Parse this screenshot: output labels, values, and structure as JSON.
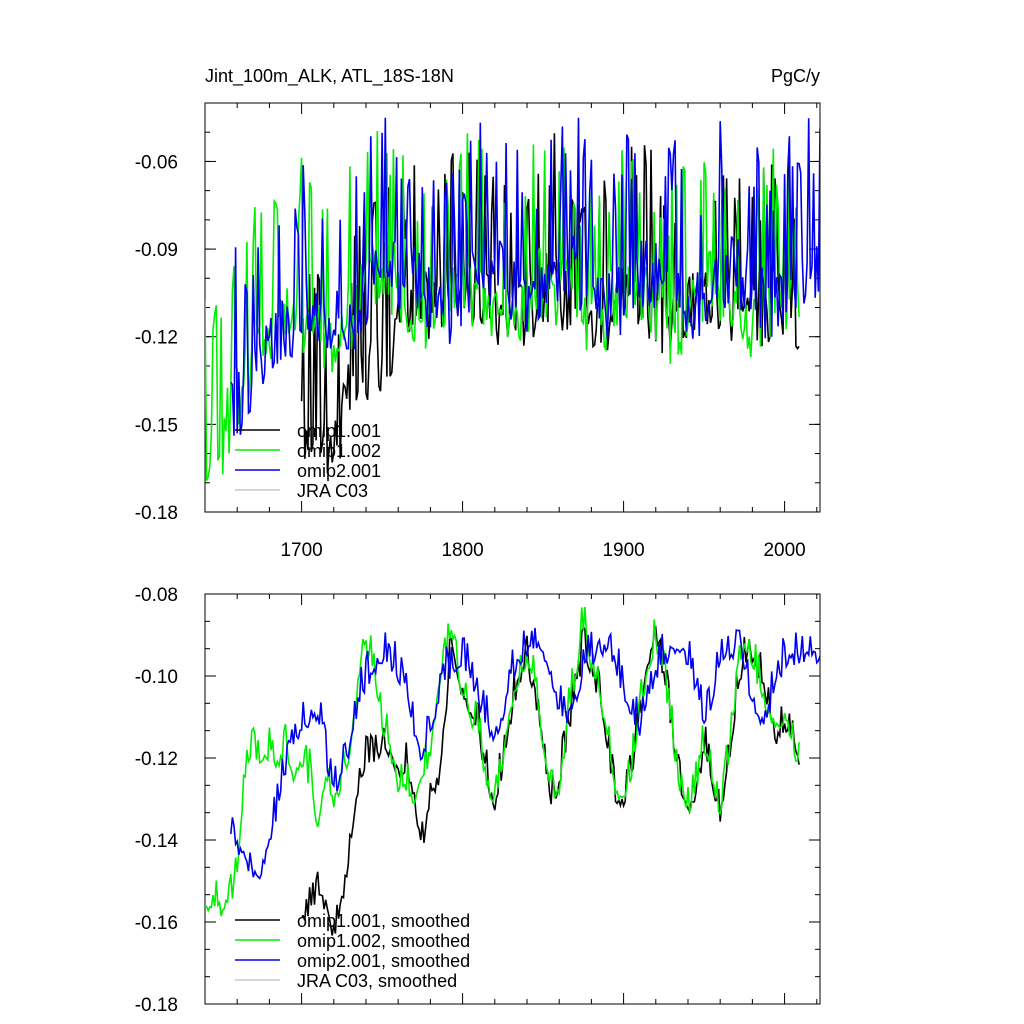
{
  "chart_data": [
    {
      "type": "line",
      "title": "Jint_100m_ALK, ATL_18S-18N",
      "units_label": "PgC/y",
      "xlabel": "",
      "ylabel": "",
      "xlim": [
        1640,
        2022
      ],
      "ylim": [
        -0.18,
        -0.04
      ],
      "xticks": [
        1700,
        1800,
        1900,
        2000
      ],
      "xtick_labels": [
        "1700",
        "1800",
        "1900",
        "2000"
      ],
      "yticks": [
        -0.18,
        -0.15,
        -0.12,
        -0.09,
        -0.06
      ],
      "ytick_labels": [
        "-0.18",
        "-0.15",
        "-0.12",
        "-0.09",
        "-0.06"
      ],
      "legend_position": "bottom-left",
      "series": [
        {
          "name": "omip1.001",
          "color": "#000000",
          "x_start": 1700,
          "x_end": 2009,
          "x": [
            1700,
            1710,
            1720,
            1730,
            1740,
            1750,
            1760,
            1770,
            1780,
            1790,
            1800,
            1810,
            1820,
            1830,
            1840,
            1850,
            1860,
            1870,
            1880,
            1890,
            1900,
            1910,
            1920,
            1930,
            1940,
            1950,
            1960,
            1970,
            1980,
            1990,
            2000,
            2009
          ],
          "values": [
            -0.153,
            -0.15,
            -0.158,
            -0.14,
            -0.132,
            -0.125,
            -0.118,
            -0.112,
            -0.108,
            -0.105,
            -0.102,
            -0.106,
            -0.112,
            -0.115,
            -0.11,
            -0.103,
            -0.104,
            -0.11,
            -0.116,
            -0.112,
            -0.102,
            -0.104,
            -0.112,
            -0.118,
            -0.112,
            -0.104,
            -0.106,
            -0.113,
            -0.116,
            -0.11,
            -0.108,
            -0.112
          ]
        },
        {
          "name": "omip1.002",
          "color": "#00ee00",
          "x_start": 1640,
          "x_end": 2009,
          "x": [
            1640,
            1650,
            1660,
            1670,
            1680,
            1690,
            1700,
            1710,
            1720,
            1730,
            1740,
            1750,
            1760,
            1770,
            1780,
            1790,
            1800,
            1810,
            1820,
            1830,
            1840,
            1850,
            1860,
            1870,
            1880,
            1890,
            1900,
            1910,
            1920,
            1930,
            1940,
            1950,
            1960,
            1970,
            1980,
            1990,
            2000,
            2009
          ],
          "values": [
            -0.158,
            -0.156,
            -0.14,
            -0.125,
            -0.118,
            -0.115,
            -0.112,
            -0.118,
            -0.122,
            -0.115,
            -0.1,
            -0.098,
            -0.103,
            -0.11,
            -0.113,
            -0.108,
            -0.101,
            -0.106,
            -0.112,
            -0.114,
            -0.108,
            -0.1,
            -0.104,
            -0.11,
            -0.115,
            -0.111,
            -0.102,
            -0.104,
            -0.111,
            -0.117,
            -0.112,
            -0.103,
            -0.105,
            -0.112,
            -0.116,
            -0.109,
            -0.108,
            -0.112
          ]
        },
        {
          "name": "omip2.001",
          "color": "#0000ee",
          "x_start": 1656,
          "x_end": 2022,
          "x": [
            1656,
            1660,
            1670,
            1680,
            1690,
            1700,
            1710,
            1720,
            1730,
            1740,
            1750,
            1760,
            1770,
            1780,
            1790,
            1800,
            1810,
            1820,
            1830,
            1840,
            1850,
            1860,
            1870,
            1880,
            1890,
            1900,
            1910,
            1920,
            1930,
            1940,
            1950,
            1960,
            1970,
            1980,
            1990,
            2000,
            2010,
            2022
          ],
          "values": [
            -0.142,
            -0.143,
            -0.136,
            -0.125,
            -0.118,
            -0.113,
            -0.11,
            -0.112,
            -0.116,
            -0.104,
            -0.1,
            -0.098,
            -0.102,
            -0.106,
            -0.112,
            -0.108,
            -0.1,
            -0.098,
            -0.104,
            -0.11,
            -0.108,
            -0.1,
            -0.098,
            -0.104,
            -0.11,
            -0.106,
            -0.099,
            -0.097,
            -0.104,
            -0.11,
            -0.107,
            -0.099,
            -0.097,
            -0.103,
            -0.109,
            -0.104,
            -0.099,
            -0.1
          ]
        },
        {
          "name": "JRA C03",
          "color": "#c8c8c8",
          "x": [],
          "values": []
        }
      ]
    },
    {
      "type": "line",
      "title": "",
      "xlabel": "",
      "ylabel": "",
      "xlim": [
        1640,
        2022
      ],
      "ylim": [
        -0.18,
        -0.08
      ],
      "xticks": [
        1700,
        1800,
        1900,
        2000
      ],
      "xtick_labels": [],
      "yticks": [
        -0.18,
        -0.16,
        -0.14,
        -0.12,
        -0.1,
        -0.08
      ],
      "ytick_labels": [
        "-0.18",
        "-0.16",
        "-0.14",
        "-0.12",
        "-0.10",
        "-0.08"
      ],
      "legend_position": "bottom-left",
      "series": [
        {
          "name": "omip1.001, smoothed",
          "color": "#000000",
          "x": [
            1700,
            1705,
            1710,
            1715,
            1720,
            1725,
            1730,
            1735,
            1740,
            1745,
            1750,
            1755,
            1760,
            1765,
            1770,
            1775,
            1780,
            1785,
            1790,
            1793,
            1795,
            1800,
            1805,
            1810,
            1815,
            1820,
            1825,
            1830,
            1835,
            1840,
            1845,
            1850,
            1855,
            1860,
            1865,
            1870,
            1875,
            1880,
            1885,
            1890,
            1895,
            1900,
            1905,
            1910,
            1915,
            1920,
            1925,
            1930,
            1935,
            1940,
            1945,
            1950,
            1955,
            1960,
            1965,
            1970,
            1975,
            1980,
            1985,
            1990,
            1995,
            2000,
            2005,
            2009
          ],
          "values": [
            -0.16,
            -0.158,
            -0.154,
            -0.156,
            -0.165,
            -0.155,
            -0.143,
            -0.128,
            -0.122,
            -0.12,
            -0.117,
            -0.119,
            -0.124,
            -0.122,
            -0.13,
            -0.142,
            -0.13,
            -0.125,
            -0.108,
            -0.092,
            -0.097,
            -0.104,
            -0.11,
            -0.114,
            -0.125,
            -0.132,
            -0.122,
            -0.11,
            -0.101,
            -0.097,
            -0.104,
            -0.118,
            -0.13,
            -0.127,
            -0.115,
            -0.104,
            -0.095,
            -0.098,
            -0.106,
            -0.118,
            -0.13,
            -0.131,
            -0.124,
            -0.11,
            -0.098,
            -0.089,
            -0.1,
            -0.113,
            -0.126,
            -0.134,
            -0.128,
            -0.118,
            -0.126,
            -0.134,
            -0.122,
            -0.106,
            -0.095,
            -0.095,
            -0.1,
            -0.108,
            -0.115,
            -0.112,
            -0.116,
            -0.122
          ]
        },
        {
          "name": "omip1.002, smoothed",
          "color": "#00ee00",
          "x": [
            1640,
            1645,
            1650,
            1655,
            1660,
            1662,
            1665,
            1670,
            1675,
            1680,
            1685,
            1690,
            1695,
            1700,
            1705,
            1710,
            1715,
            1720,
            1725,
            1730,
            1735,
            1738,
            1740,
            1745,
            1750,
            1755,
            1760,
            1765,
            1770,
            1775,
            1780,
            1785,
            1790,
            1793,
            1795,
            1800,
            1805,
            1810,
            1815,
            1820,
            1825,
            1830,
            1835,
            1840,
            1845,
            1850,
            1855,
            1860,
            1865,
            1870,
            1875,
            1880,
            1885,
            1890,
            1895,
            1900,
            1905,
            1910,
            1915,
            1920,
            1925,
            1930,
            1935,
            1940,
            1945,
            1950,
            1955,
            1960,
            1965,
            1970,
            1975,
            1980,
            1985,
            1990,
            1995,
            2000,
            2005,
            2009
          ],
          "values": [
            -0.157,
            -0.155,
            -0.157,
            -0.156,
            -0.148,
            -0.138,
            -0.125,
            -0.118,
            -0.122,
            -0.119,
            -0.121,
            -0.117,
            -0.124,
            -0.122,
            -0.125,
            -0.136,
            -0.126,
            -0.131,
            -0.126,
            -0.118,
            -0.102,
            -0.092,
            -0.093,
            -0.1,
            -0.112,
            -0.118,
            -0.127,
            -0.128,
            -0.13,
            -0.126,
            -0.118,
            -0.104,
            -0.095,
            -0.089,
            -0.096,
            -0.104,
            -0.11,
            -0.115,
            -0.126,
            -0.133,
            -0.121,
            -0.108,
            -0.101,
            -0.096,
            -0.102,
            -0.117,
            -0.13,
            -0.128,
            -0.112,
            -0.1,
            -0.088,
            -0.097,
            -0.105,
            -0.116,
            -0.129,
            -0.131,
            -0.124,
            -0.11,
            -0.098,
            -0.092,
            -0.1,
            -0.114,
            -0.127,
            -0.133,
            -0.128,
            -0.117,
            -0.126,
            -0.133,
            -0.121,
            -0.104,
            -0.093,
            -0.097,
            -0.103,
            -0.11,
            -0.113,
            -0.11,
            -0.116,
            -0.122
          ]
        },
        {
          "name": "omip2.001, smoothed",
          "color": "#0000ee",
          "x": [
            1656,
            1660,
            1665,
            1670,
            1675,
            1680,
            1685,
            1690,
            1695,
            1700,
            1705,
            1710,
            1715,
            1720,
            1725,
            1730,
            1735,
            1740,
            1745,
            1750,
            1755,
            1760,
            1765,
            1770,
            1775,
            1780,
            1785,
            1790,
            1795,
            1800,
            1805,
            1810,
            1815,
            1820,
            1825,
            1830,
            1835,
            1840,
            1845,
            1850,
            1855,
            1860,
            1865,
            1870,
            1875,
            1880,
            1885,
            1890,
            1895,
            1900,
            1905,
            1910,
            1915,
            1920,
            1925,
            1930,
            1935,
            1940,
            1945,
            1950,
            1955,
            1960,
            1965,
            1970,
            1975,
            1980,
            1985,
            1990,
            1995,
            2000,
            2005,
            2010,
            2022
          ],
          "values": [
            -0.139,
            -0.142,
            -0.144,
            -0.149,
            -0.148,
            -0.141,
            -0.133,
            -0.123,
            -0.118,
            -0.114,
            -0.11,
            -0.109,
            -0.12,
            -0.128,
            -0.124,
            -0.118,
            -0.107,
            -0.102,
            -0.098,
            -0.096,
            -0.097,
            -0.1,
            -0.104,
            -0.114,
            -0.121,
            -0.114,
            -0.106,
            -0.1,
            -0.098,
            -0.097,
            -0.1,
            -0.106,
            -0.112,
            -0.115,
            -0.11,
            -0.101,
            -0.096,
            -0.094,
            -0.093,
            -0.094,
            -0.1,
            -0.108,
            -0.111,
            -0.106,
            -0.099,
            -0.096,
            -0.093,
            -0.094,
            -0.097,
            -0.104,
            -0.111,
            -0.113,
            -0.107,
            -0.1,
            -0.096,
            -0.094,
            -0.093,
            -0.097,
            -0.104,
            -0.111,
            -0.107,
            -0.097,
            -0.095,
            -0.094,
            -0.098,
            -0.106,
            -0.111,
            -0.109,
            -0.101,
            -0.097,
            -0.096,
            -0.095,
            -0.095
          ]
        },
        {
          "name": "JRA C03, smoothed",
          "color": "#c8c8c8",
          "x": [],
          "values": []
        }
      ]
    }
  ]
}
